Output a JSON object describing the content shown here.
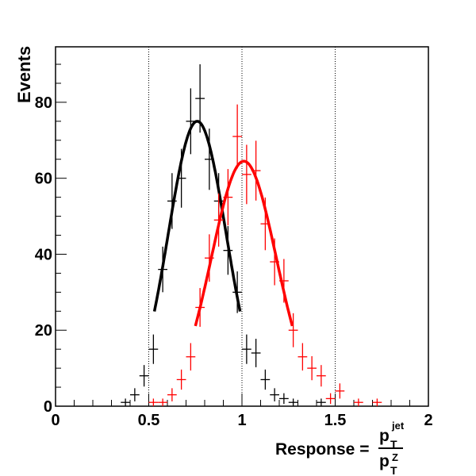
{
  "chart_data": {
    "type": "scatter",
    "title": "",
    "xlabel": "Response =",
    "xlabel_fraction": {
      "num_base": "p",
      "num_sub": "T",
      "num_sup": "jet",
      "den_base": "p",
      "den_sub": "T",
      "den_sup": "Z"
    },
    "ylabel": "Events",
    "xlim": [
      0,
      2
    ],
    "ylim": [
      0,
      94.6
    ],
    "x_ticks": [
      "0",
      "0.5",
      "1",
      "1.5",
      "2"
    ],
    "y_ticks": [
      "0",
      "20",
      "40",
      "60",
      "80"
    ],
    "grid_x_dotted": [
      0.5,
      1,
      1.5
    ],
    "bin_width": 0.05,
    "series": [
      {
        "name": "black",
        "color": "#000000",
        "x": [
          0.375,
          0.425,
          0.475,
          0.525,
          0.575,
          0.625,
          0.675,
          0.725,
          0.775,
          0.825,
          0.875,
          0.925,
          0.975,
          1.025,
          1.075,
          1.125,
          1.175,
          1.225,
          1.275,
          1.425
        ],
        "y": [
          1,
          3,
          8,
          15,
          36,
          54,
          60,
          75,
          81,
          65,
          54,
          41,
          30,
          15,
          14,
          7,
          3,
          2,
          1,
          1
        ],
        "fit": {
          "type": "gaussian",
          "amplitude": 75,
          "mean": 0.76,
          "sigma": 0.155,
          "range": [
            0.53,
            0.99
          ]
        }
      },
      {
        "name": "red",
        "color": "#ff0000",
        "x": [
          0.525,
          0.575,
          0.625,
          0.675,
          0.725,
          0.775,
          0.825,
          0.875,
          0.925,
          0.975,
          1.025,
          1.075,
          1.125,
          1.175,
          1.225,
          1.275,
          1.325,
          1.375,
          1.425,
          1.475,
          1.525,
          1.625,
          1.725
        ],
        "y": [
          1,
          1,
          3,
          7,
          13,
          26,
          39,
          49,
          55,
          71,
          61,
          62,
          48,
          38,
          33,
          20,
          13,
          10,
          8,
          2,
          4,
          1,
          1
        ],
        "fit": {
          "type": "gaussian",
          "amplitude": 64.5,
          "mean": 1.01,
          "sigma": 0.174,
          "range": [
            0.75,
            1.27
          ]
        }
      }
    ]
  }
}
